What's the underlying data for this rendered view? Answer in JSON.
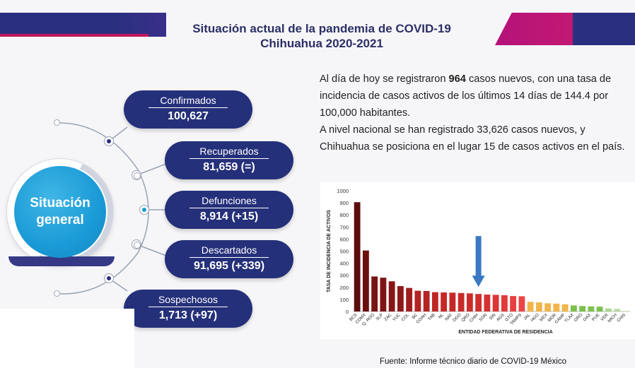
{
  "header": {
    "title_line1": "Situación actual de la pandemia de COVID-19",
    "title_line2": "Chihuahua 2020-2021"
  },
  "hub": {
    "line1": "Situación",
    "line2": "general"
  },
  "stats": [
    {
      "label": "Confirmados",
      "value": "100,627"
    },
    {
      "label": "Recuperados",
      "value": "81,659 (=)"
    },
    {
      "label": "Defunciones",
      "value": "8,914 (+15)"
    },
    {
      "label": "Descartados",
      "value": "91,695 (+339)"
    },
    {
      "label": "Sospechosos",
      "value": "1,713 (+97)"
    }
  ],
  "summary": {
    "p1_prefix": "Al día de hoy se registraron ",
    "p1_bold": "964",
    "p1_suffix": " casos nuevos, con una tasa de incidencia de casos activos de los últimos 14 días de 144.4 por 100,000 habitantes.",
    "p2": "A nivel nacional se han registrado 33,626 casos nuevos, y Chihuahua se posiciona en el lugar 15 de casos activos en el país."
  },
  "colors": {
    "navy": "#2b2f7f",
    "magenta": "#c2185b",
    "hub_blue": "#1a9ad6",
    "arrow_blue": "#3b78c4"
  },
  "chart_data": {
    "type": "bar",
    "title": "",
    "xlabel": "ENTIDAD FEDERATIVA DE RESIDENCIA",
    "ylabel": "TASA DE INCIDENCIA DE ACTIVOS",
    "ylim": [
      0,
      1000
    ],
    "yticks": [
      0,
      100,
      200,
      300,
      400,
      500,
      600,
      700,
      800,
      900,
      1000
    ],
    "categories": [
      "BCS",
      "CDMX",
      "Q. ROO",
      "SLP",
      "ZAC",
      "YUC",
      "COL",
      "BC",
      "COAH",
      "TAB",
      "NL",
      "NAY",
      "DGO",
      "QRO",
      "CHIH",
      "SON",
      "SIN",
      "AGS",
      "GTO",
      "TAMPS",
      "JAL",
      "HGO",
      "MEX",
      "MOR",
      "CAMP",
      "TLAX",
      "GRO",
      "OAX",
      "PUE",
      "VER",
      "MICH",
      "CHIS"
    ],
    "values": [
      905,
      505,
      290,
      280,
      250,
      210,
      195,
      172,
      170,
      160,
      158,
      156,
      153,
      150,
      145,
      140,
      138,
      135,
      128,
      126,
      80,
      75,
      68,
      65,
      60,
      50,
      45,
      42,
      40,
      25,
      22,
      5
    ],
    "colors": [
      "#5b0d0d",
      "#6a1010",
      "#7a1313",
      "#7f1414",
      "#861616",
      "#8e1818",
      "#a01d1d",
      "#b52222",
      "#b52323",
      "#bf2525",
      "#c62828",
      "#c62828",
      "#c82a2a",
      "#cc2c2c",
      "#d02e2e",
      "#d63030",
      "#dc3535",
      "#e23a3a",
      "#e84040",
      "#ec4545",
      "#f2b54a",
      "#f2b54a",
      "#f2b54a",
      "#f2b54a",
      "#f2b54a",
      "#7cc04e",
      "#7cc04e",
      "#7cc04e",
      "#7cc04e",
      "#a9d78c",
      "#b8dca2",
      "#c9e5b5"
    ],
    "annotation": {
      "type": "arrow",
      "category": "CHIH"
    },
    "grid": false,
    "legend": "none"
  },
  "footer": {
    "source": "Fuente: Informe técnico diario de COVID-19 México"
  }
}
